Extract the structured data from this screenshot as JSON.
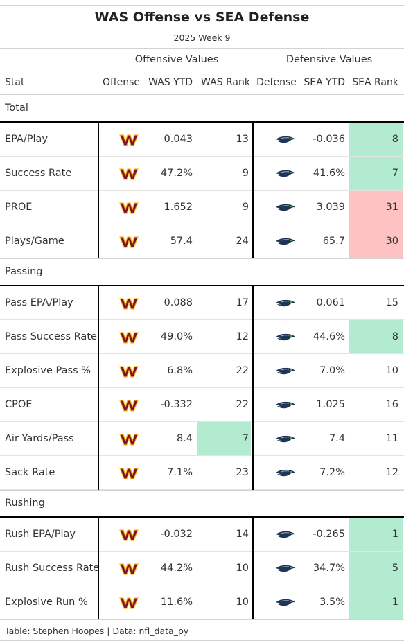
{
  "title": "WAS Offense vs SEA Defense",
  "subtitle": "2025 Week 9",
  "spanners": {
    "offensive": "Offensive Values",
    "defensive": "Defensive Values"
  },
  "columns": [
    "Stat",
    "Offense",
    "WAS YTD",
    "WAS Rank",
    "Defense",
    "SEA YTD",
    "SEA Rank"
  ],
  "colors": {
    "good": "#b3ebd0",
    "bad": "#ffc2c2",
    "was_burgundy": "#7a1426",
    "was_gold": "#fcb51a",
    "sea_navy": "#1d3557",
    "sea_gray": "#8ea2b8"
  },
  "icons": {
    "offense": "commanders-logo-icon",
    "defense": "seahawks-logo-icon"
  },
  "groups": [
    {
      "label": "Total",
      "rows": [
        {
          "stat": "EPA/Play",
          "was_ytd": "0.043",
          "was_rank": "13",
          "sea_ytd": "-0.036",
          "sea_rank": "8",
          "was_hl": "",
          "sea_hl": "good"
        },
        {
          "stat": "Success Rate",
          "was_ytd": "47.2%",
          "was_rank": "9",
          "sea_ytd": "41.6%",
          "sea_rank": "7",
          "was_hl": "",
          "sea_hl": "good"
        },
        {
          "stat": "PROE",
          "was_ytd": "1.652",
          "was_rank": "9",
          "sea_ytd": "3.039",
          "sea_rank": "31",
          "was_hl": "",
          "sea_hl": "bad"
        },
        {
          "stat": "Plays/Game",
          "was_ytd": "57.4",
          "was_rank": "24",
          "sea_ytd": "65.7",
          "sea_rank": "30",
          "was_hl": "",
          "sea_hl": "bad"
        }
      ]
    },
    {
      "label": "Passing",
      "rows": [
        {
          "stat": "Pass EPA/Play",
          "was_ytd": "0.088",
          "was_rank": "17",
          "sea_ytd": "0.061",
          "sea_rank": "15",
          "was_hl": "",
          "sea_hl": ""
        },
        {
          "stat": "Pass Success Rate",
          "was_ytd": "49.0%",
          "was_rank": "12",
          "sea_ytd": "44.6%",
          "sea_rank": "8",
          "was_hl": "",
          "sea_hl": "good"
        },
        {
          "stat": "Explosive Pass %",
          "was_ytd": "6.8%",
          "was_rank": "22",
          "sea_ytd": "7.0%",
          "sea_rank": "10",
          "was_hl": "",
          "sea_hl": ""
        },
        {
          "stat": "CPOE",
          "was_ytd": "-0.332",
          "was_rank": "22",
          "sea_ytd": "1.025",
          "sea_rank": "16",
          "was_hl": "",
          "sea_hl": ""
        },
        {
          "stat": "Air Yards/Pass",
          "was_ytd": "8.4",
          "was_rank": "7",
          "sea_ytd": "7.4",
          "sea_rank": "11",
          "was_hl": "good",
          "sea_hl": ""
        },
        {
          "stat": "Sack Rate",
          "was_ytd": "7.1%",
          "was_rank": "23",
          "sea_ytd": "7.2%",
          "sea_rank": "12",
          "was_hl": "",
          "sea_hl": ""
        }
      ]
    },
    {
      "label": "Rushing",
      "rows": [
        {
          "stat": "Rush EPA/Play",
          "was_ytd": "-0.032",
          "was_rank": "14",
          "sea_ytd": "-0.265",
          "sea_rank": "1",
          "was_hl": "",
          "sea_hl": "good"
        },
        {
          "stat": "Rush Success Rate",
          "was_ytd": "44.2%",
          "was_rank": "10",
          "sea_ytd": "34.7%",
          "sea_rank": "5",
          "was_hl": "",
          "sea_hl": "good"
        },
        {
          "stat": "Explosive Run %",
          "was_ytd": "11.6%",
          "was_rank": "10",
          "sea_ytd": "3.5%",
          "sea_rank": "1",
          "was_hl": "",
          "sea_hl": "good"
        }
      ]
    }
  ],
  "source": "Table: Stephen Hoopes | Data: nfl_data_py"
}
